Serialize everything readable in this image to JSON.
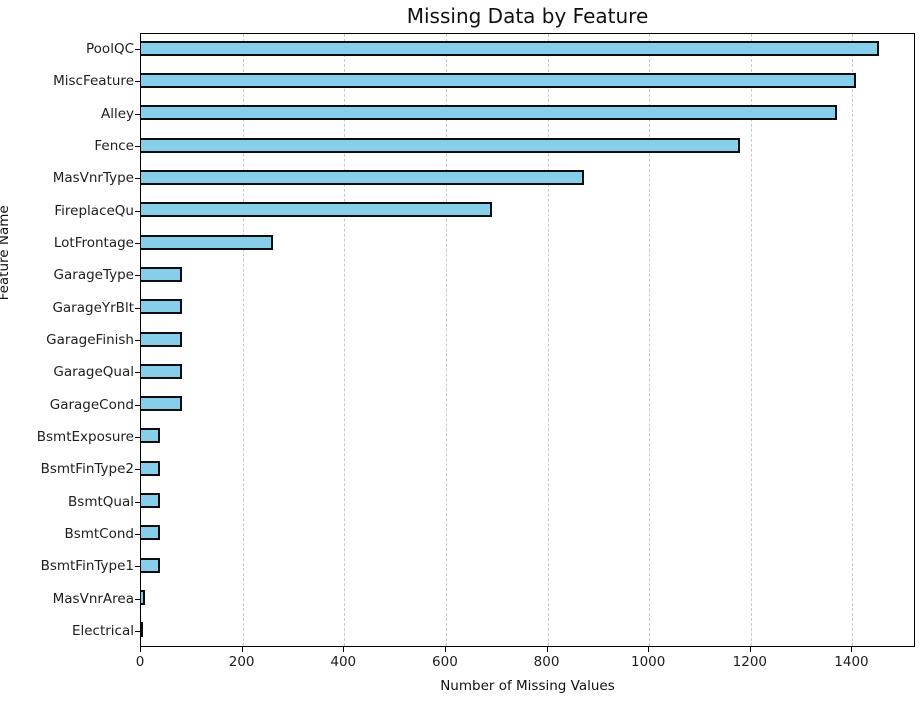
{
  "chart_data": {
    "type": "bar",
    "orientation": "horizontal",
    "title": "Missing Data by Feature",
    "xlabel": "Number of Missing Values",
    "ylabel": "Feature Name",
    "categories": [
      "PoolQC",
      "MiscFeature",
      "Alley",
      "Fence",
      "MasVnrType",
      "FireplaceQu",
      "LotFrontage",
      "GarageType",
      "GarageYrBlt",
      "GarageFinish",
      "GarageQual",
      "GarageCond",
      "BsmtExposure",
      "BsmtFinType2",
      "BsmtQual",
      "BsmtCond",
      "BsmtFinType1",
      "MasVnrArea",
      "Electrical"
    ],
    "values": [
      1453,
      1406,
      1369,
      1179,
      872,
      690,
      259,
      81,
      81,
      81,
      81,
      81,
      38,
      38,
      37,
      37,
      37,
      8,
      1
    ],
    "xlim": [
      0,
      1525
    ],
    "xticks": [
      0,
      200,
      400,
      600,
      800,
      1000,
      1200,
      1400
    ],
    "grid": "vertical-dashed",
    "legend": "none",
    "bar_color": "#87CEEB",
    "bar_edge_color": "#0d0d0d",
    "background": "#FFFFFF"
  }
}
